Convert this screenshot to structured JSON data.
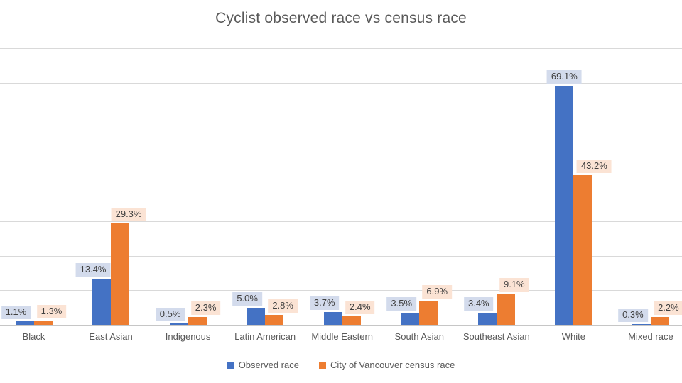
{
  "title": "Cyclist observed race vs census race",
  "chart_data": {
    "type": "bar",
    "title": "Cyclist observed race vs census race",
    "xlabel": "",
    "ylabel": "",
    "categories": [
      "Black",
      "East Asian",
      "Indigenous",
      "Latin American",
      "Middle Eastern",
      "South Asian",
      "Southeast Asian",
      "White",
      "Mixed race"
    ],
    "series": [
      {
        "name": "Observed race",
        "color": "#4472C4",
        "label_bg": "#D3DBEC",
        "values": [
          1.1,
          13.4,
          0.5,
          5.0,
          3.7,
          3.5,
          3.4,
          69.1,
          0.3
        ]
      },
      {
        "name": "City of Vancouver census race",
        "color": "#ED7D31",
        "label_bg": "#FBE3D4",
        "values": [
          1.3,
          29.3,
          2.3,
          2.8,
          2.4,
          6.9,
          9.1,
          43.2,
          2.2
        ]
      }
    ],
    "data_label_decimals": 1,
    "data_label_suffix": "%",
    "ylim": [
      0,
      80
    ],
    "y_tick_interval": 10,
    "y_axis_labels_visible": false,
    "grid": true,
    "legend_position": "bottom"
  },
  "colors": {
    "background": "#FFFFFF",
    "gridline": "#D9D9D9",
    "axis_line": "#C6C6C6",
    "title_text": "#595959",
    "category_text": "#595959",
    "legend_text": "#595959",
    "data_label_text": "#404040"
  }
}
